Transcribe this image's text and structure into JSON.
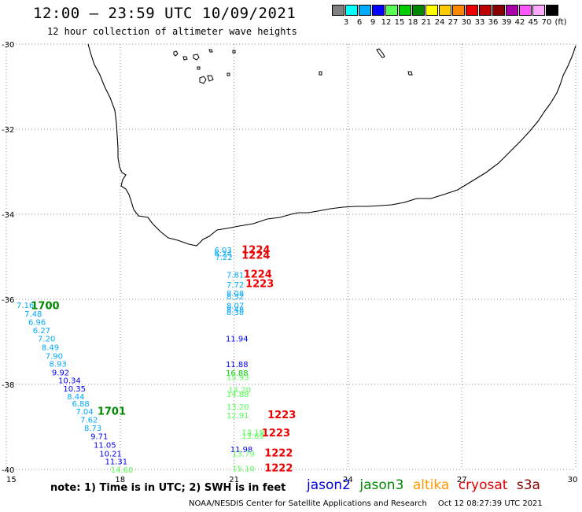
{
  "header": {
    "title": "12:00 – 23:59 UTC 10/09/2021",
    "subtitle": "12 hour collection of altimeter wave heights"
  },
  "colorbar": {
    "unit": "(ft)",
    "swatches": [
      {
        "color": "#808080",
        "label": "3"
      },
      {
        "color": "#00ffff",
        "label": "6"
      },
      {
        "color": "#00aaff",
        "label": "9"
      },
      {
        "color": "#0000ff",
        "label": "12"
      },
      {
        "color": "#55ff55",
        "label": "15"
      },
      {
        "color": "#00cc00",
        "label": "18"
      },
      {
        "color": "#008800",
        "label": "21"
      },
      {
        "color": "#ffff00",
        "label": "24"
      },
      {
        "color": "#ffcc00",
        "label": "27"
      },
      {
        "color": "#ff8800",
        "label": "30"
      },
      {
        "color": "#ee0000",
        "label": "33"
      },
      {
        "color": "#bb0000",
        "label": "36"
      },
      {
        "color": "#880000",
        "label": "39"
      },
      {
        "color": "#aa00aa",
        "label": "42"
      },
      {
        "color": "#ff55ff",
        "label": "45"
      },
      {
        "color": "#ffaaff",
        "label": "70"
      },
      {
        "color": "#000000",
        "label": ""
      }
    ]
  },
  "map": {
    "lat_labels": [
      "-30",
      "-32",
      "-34",
      "-36",
      "-38",
      "-40"
    ],
    "lat_values": [
      -30,
      -32,
      -34,
      -36,
      -38,
      -40
    ],
    "lon_labels": [
      "15",
      "18",
      "21",
      "24",
      "27",
      "30"
    ],
    "lon_values": [
      15,
      18,
      21,
      24,
      27,
      30
    ],
    "lon_range": [
      15,
      30
    ],
    "lat_range": [
      -30,
      -40
    ],
    "grid": "dotted"
  },
  "tracks": [
    {
      "satellite": "jason3",
      "times": [
        {
          "label": "1700",
          "lon": 15.65,
          "lat": -36.14,
          "color": "#008800"
        },
        {
          "label": "1701",
          "lon": 17.4,
          "lat": -38.62,
          "color": "#008800"
        }
      ],
      "points": [
        {
          "v": "7.16",
          "lon": 15.27,
          "lat": -36.13,
          "c": "#00aaff"
        },
        {
          "v": "7.48",
          "lon": 15.48,
          "lat": -36.33,
          "c": "#00aaff"
        },
        {
          "v": "6.96",
          "lon": 15.58,
          "lat": -36.53,
          "c": "#00aaff"
        },
        {
          "v": "6.27",
          "lon": 15.7,
          "lat": -36.72,
          "c": "#00aaff"
        },
        {
          "v": "7.20",
          "lon": 15.83,
          "lat": -36.92,
          "c": "#00aaff"
        },
        {
          "v": "8.49",
          "lon": 15.93,
          "lat": -37.12,
          "c": "#00aaff"
        },
        {
          "v": "7.90",
          "lon": 16.03,
          "lat": -37.32,
          "c": "#00aaff"
        },
        {
          "v": "8.93",
          "lon": 16.13,
          "lat": -37.51,
          "c": "#00aaff"
        },
        {
          "v": "9.92",
          "lon": 16.2,
          "lat": -37.71,
          "c": "#0000ff"
        },
        {
          "v": "10.34",
          "lon": 16.37,
          "lat": -37.9,
          "c": "#0000ff"
        },
        {
          "v": "10.35",
          "lon": 16.5,
          "lat": -38.09,
          "c": "#0000ff"
        },
        {
          "v": "8.44",
          "lon": 16.6,
          "lat": -38.28,
          "c": "#00aaff"
        },
        {
          "v": "6.88",
          "lon": 16.73,
          "lat": -38.44,
          "c": "#00aaff"
        },
        {
          "v": "7.04",
          "lon": 16.83,
          "lat": -38.63,
          "c": "#00aaff"
        },
        {
          "v": "7.62",
          "lon": 16.95,
          "lat": -38.82,
          "c": "#00aaff"
        },
        {
          "v": "8.73",
          "lon": 17.05,
          "lat": -39.02,
          "c": "#00aaff"
        },
        {
          "v": "9.71",
          "lon": 17.22,
          "lat": -39.21,
          "c": "#0000ff"
        },
        {
          "v": "11.05",
          "lon": 17.3,
          "lat": -39.42,
          "c": "#0000ff"
        },
        {
          "v": "10.21",
          "lon": 17.45,
          "lat": -39.62,
          "c": "#0000ff"
        },
        {
          "v": "11.31",
          "lon": 17.6,
          "lat": -39.81,
          "c": "#0000ff"
        },
        {
          "v": "14.60",
          "lon": 17.75,
          "lat": -40.0,
          "c": "#55ff55"
        }
      ]
    },
    {
      "satellite": "cryosat",
      "times": [
        {
          "label": "1224",
          "lon": 21.2,
          "lat": -34.82,
          "color": "#ee0000"
        },
        {
          "label": "1224",
          "lon": 21.2,
          "lat": -34.95,
          "color": "#ee0000"
        },
        {
          "label": "1224",
          "lon": 21.25,
          "lat": -35.4,
          "color": "#ee0000"
        },
        {
          "label": "1223",
          "lon": 21.3,
          "lat": -35.62,
          "color": "#ee0000"
        },
        {
          "label": "1223",
          "lon": 21.88,
          "lat": -38.7,
          "color": "#ee0000"
        },
        {
          "label": "1223",
          "lon": 21.73,
          "lat": -39.13,
          "color": "#ee0000"
        },
        {
          "label": "1222",
          "lon": 21.8,
          "lat": -39.6,
          "color": "#ee0000"
        },
        {
          "label": "1222",
          "lon": 21.8,
          "lat": -39.95,
          "color": "#ee0000"
        }
      ],
      "points": [
        {
          "v": "6.03",
          "lon": 20.48,
          "lat": -34.83,
          "c": "#00aaff"
        },
        {
          "v": "6.24",
          "lon": 20.48,
          "lat": -34.92,
          "c": "#00aaff"
        },
        {
          "v": "7.22",
          "lon": 20.5,
          "lat": -35.0,
          "c": "#00aaff"
        },
        {
          "v": "7.81",
          "lon": 20.8,
          "lat": -35.42,
          "c": "#00aaff"
        },
        {
          "v": "7.72",
          "lon": 20.8,
          "lat": -35.65,
          "c": "#00aaff"
        },
        {
          "v": "8.08",
          "lon": 20.8,
          "lat": -35.85,
          "c": "#00aaff"
        },
        {
          "v": "8.32",
          "lon": 20.8,
          "lat": -35.93,
          "c": "#00aaff"
        },
        {
          "v": "8.07",
          "lon": 20.8,
          "lat": -36.14,
          "c": "#00aaff"
        },
        {
          "v": "8.48",
          "lon": 20.8,
          "lat": -36.23,
          "c": "#00aaff"
        },
        {
          "v": "8.38",
          "lon": 20.8,
          "lat": -36.3,
          "c": "#00aaff"
        },
        {
          "v": "11.94",
          "lon": 20.78,
          "lat": -36.92,
          "c": "#0000ff"
        },
        {
          "v": "11.88",
          "lon": 20.78,
          "lat": -37.52,
          "c": "#0000ff"
        },
        {
          "v": "16.88",
          "lon": 20.78,
          "lat": -37.72,
          "c": "#00cc00"
        },
        {
          "v": "15.93",
          "lon": 20.8,
          "lat": -37.82,
          "c": "#55ff55"
        },
        {
          "v": "14.20",
          "lon": 20.85,
          "lat": -38.12,
          "c": "#55ff55"
        },
        {
          "v": "14.88",
          "lon": 20.8,
          "lat": -38.22,
          "c": "#55ff55"
        },
        {
          "v": "13.20",
          "lon": 20.8,
          "lat": -38.52,
          "c": "#55ff55"
        },
        {
          "v": "12.91",
          "lon": 20.8,
          "lat": -38.72,
          "c": "#55ff55"
        },
        {
          "v": "13.19",
          "lon": 21.2,
          "lat": -39.12,
          "c": "#55ff55"
        },
        {
          "v": "13.69",
          "lon": 21.2,
          "lat": -39.2,
          "c": "#55ff55"
        },
        {
          "v": "11.98",
          "lon": 20.9,
          "lat": -39.52,
          "c": "#0000ff"
        },
        {
          "v": "13.79",
          "lon": 20.95,
          "lat": -39.62,
          "c": "#55ff55"
        },
        {
          "v": "15.10",
          "lon": 20.95,
          "lat": -39.97,
          "c": "#55ff55"
        }
      ]
    }
  ],
  "footer": {
    "note": "note: 1) Time is in UTC; 2) SWH is in feet",
    "legend": [
      {
        "name": "jason2",
        "color": "#0000dd"
      },
      {
        "name": "jason3",
        "color": "#008800"
      },
      {
        "name": "altika",
        "color": "#ff9900"
      },
      {
        "name": "cryosat",
        "color": "#dd0000"
      },
      {
        "name": "s3a",
        "color": "#880000"
      }
    ],
    "credit": "NOAA/NESDIS Center for Satellite Applications and Research",
    "timestamp": "Oct 12 08:27:39 UTC 2021"
  }
}
